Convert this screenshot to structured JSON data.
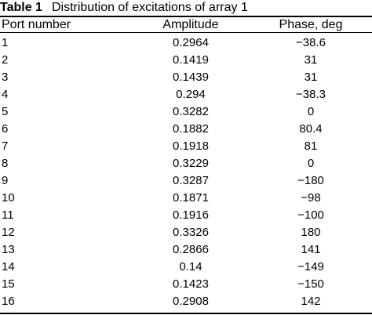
{
  "caption": {
    "label": "Table 1",
    "text": "Distribution of excitations of array 1"
  },
  "table": {
    "headers": [
      "Port number",
      "Amplitude",
      "Phase, deg"
    ],
    "rows": [
      [
        "1",
        "0.2964",
        "−38.6"
      ],
      [
        "2",
        "0.1419",
        "31"
      ],
      [
        "3",
        "0.1439",
        "31"
      ],
      [
        "4",
        "0.294",
        "−38.3"
      ],
      [
        "5",
        "0.3282",
        "0"
      ],
      [
        "6",
        "0.1882",
        "80.4"
      ],
      [
        "7",
        "0.1918",
        "81"
      ],
      [
        "8",
        "0.3229",
        "0"
      ],
      [
        "9",
        "0.3287",
        "−180"
      ],
      [
        "10",
        "0.1871",
        "−98"
      ],
      [
        "11",
        "0.1916",
        "−100"
      ],
      [
        "12",
        "0.3326",
        "180"
      ],
      [
        "13",
        "0.2866",
        "141"
      ],
      [
        "14",
        "0.14",
        "−149"
      ],
      [
        "15",
        "0.1423",
        "−150"
      ],
      [
        "16",
        "0.2908",
        "142"
      ]
    ]
  }
}
